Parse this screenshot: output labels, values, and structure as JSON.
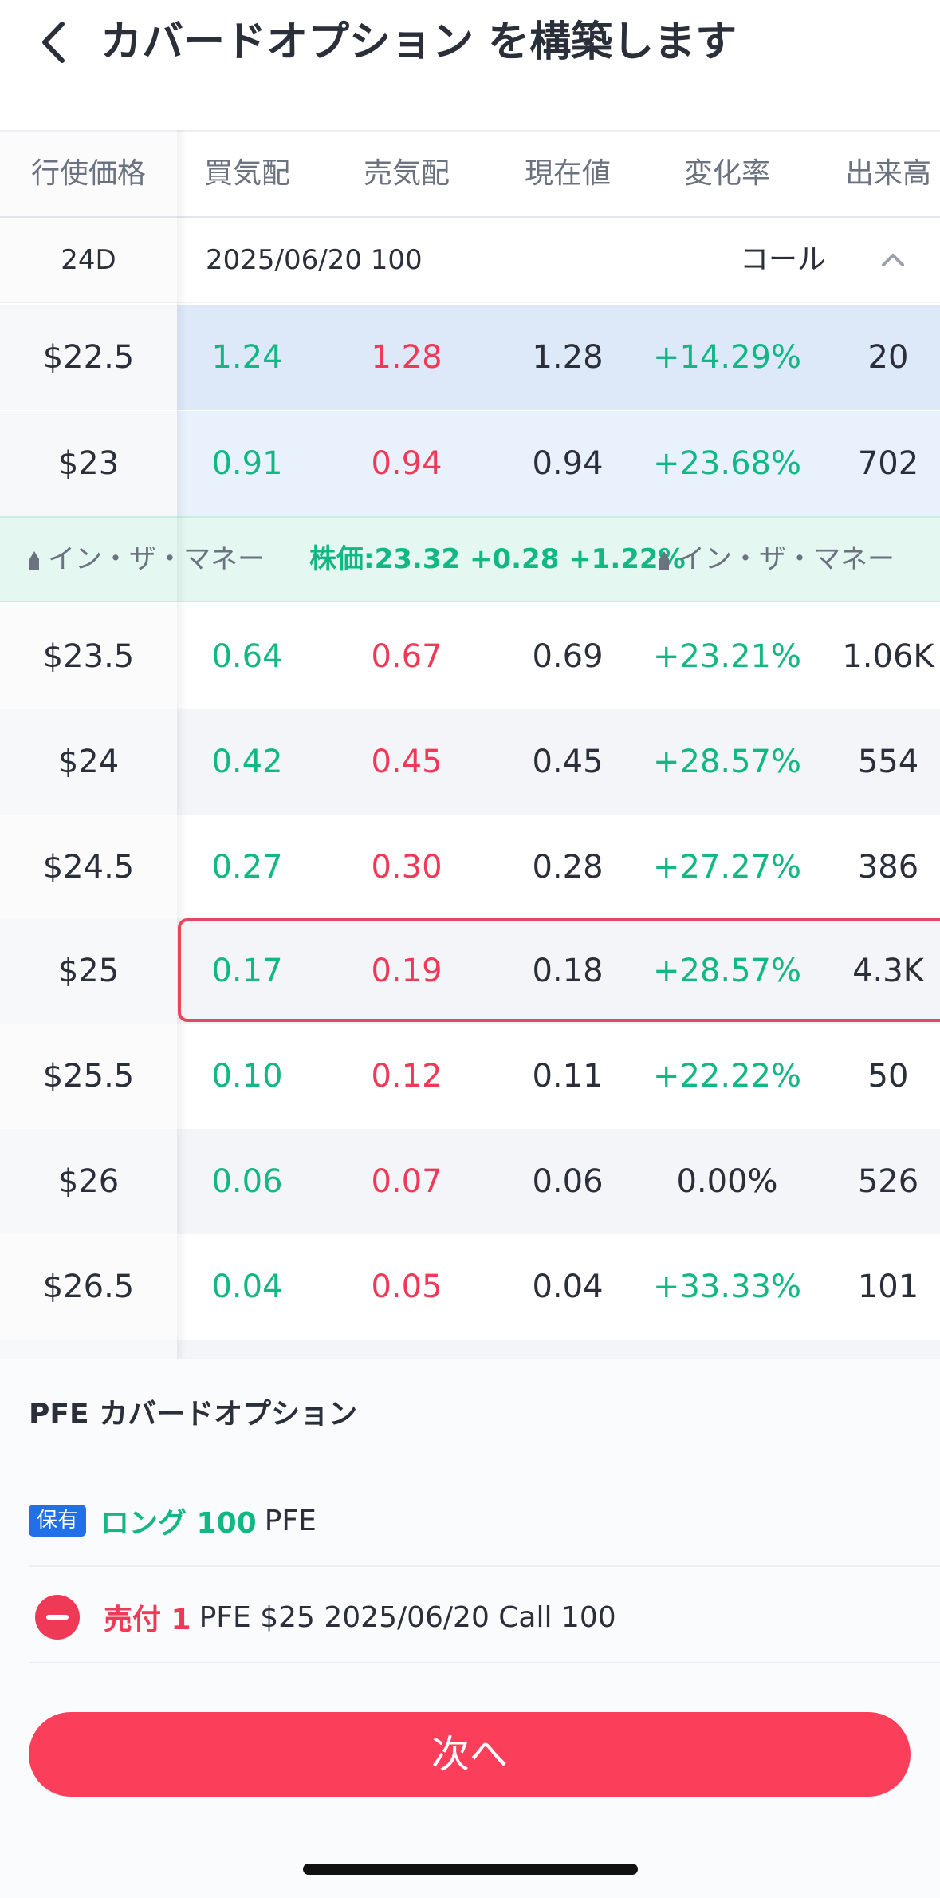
{
  "header": {
    "title": "カバードオプション を構築します"
  },
  "columns": [
    "行使価格",
    "買気配",
    "売気配",
    "現在値",
    "変化率",
    "出来高"
  ],
  "expiry": {
    "days": "24D",
    "date": "2025/06/20 100",
    "type": "コール"
  },
  "rows_itm": [
    {
      "strike": "$22.5",
      "bid": "1.24",
      "ask": "1.28",
      "last": "1.28",
      "chg": "+14.29%",
      "vol": "20"
    },
    {
      "strike": "$23",
      "bid": "0.91",
      "ask": "0.94",
      "last": "0.94",
      "chg": "+23.68%",
      "vol": "702"
    }
  ],
  "divider": {
    "left_label": "イン・ザ・マネー",
    "price": "株価:23.32 +0.28 +1.22%",
    "right_label": "イン・ザ・マネー"
  },
  "rows_otm": [
    {
      "strike": "$23.5",
      "bid": "0.64",
      "ask": "0.67",
      "last": "0.69",
      "chg": "+23.21%",
      "vol": "1.06K"
    },
    {
      "strike": "$24",
      "bid": "0.42",
      "ask": "0.45",
      "last": "0.45",
      "chg": "+28.57%",
      "vol": "554"
    },
    {
      "strike": "$24.5",
      "bid": "0.27",
      "ask": "0.30",
      "last": "0.28",
      "chg": "+27.27%",
      "vol": "386"
    },
    {
      "strike": "$25",
      "bid": "0.17",
      "ask": "0.19",
      "last": "0.18",
      "chg": "+28.57%",
      "vol": "4.3K"
    },
    {
      "strike": "$25.5",
      "bid": "0.10",
      "ask": "0.12",
      "last": "0.11",
      "chg": "+22.22%",
      "vol": "50"
    },
    {
      "strike": "$26",
      "bid": "0.06",
      "ask": "0.07",
      "last": "0.06",
      "chg": "0.00%",
      "vol": "526"
    },
    {
      "strike": "$26.5",
      "bid": "0.04",
      "ask": "0.05",
      "last": "0.04",
      "chg": "+33.33%",
      "vol": "101"
    }
  ],
  "panel": {
    "title": "PFE カバードオプション",
    "hold_badge": "保有",
    "long_text": "ロング 100",
    "hold_symbol": "PFE",
    "sell_text": "売付 1",
    "sell_detail": "PFE $25 2025/06/20 Call 100",
    "next_label": "次へ"
  },
  "colors": {
    "up": "#13b784",
    "down": "#ee3a57",
    "accent": "#fb3f5a",
    "badge": "#2170e8"
  }
}
